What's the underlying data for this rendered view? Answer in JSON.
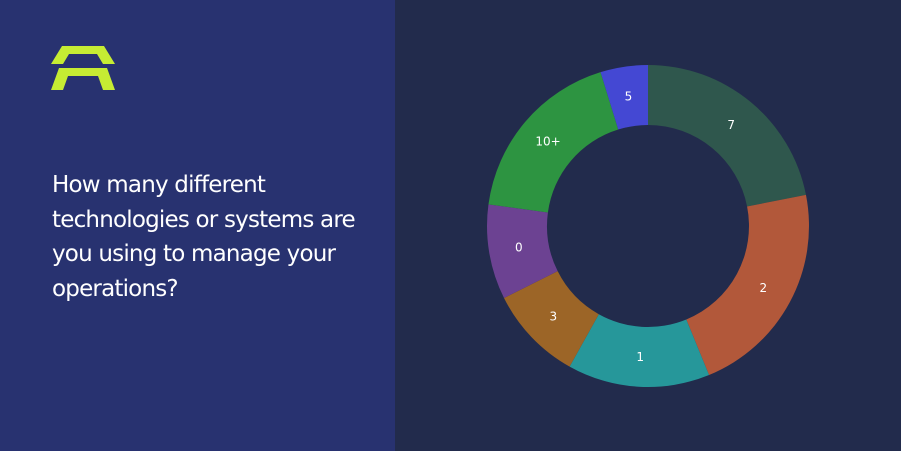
{
  "question": "How many different technologies or systems are you using to manage your operations?",
  "colors": {
    "left_bg": "#283270",
    "right_bg": "#222b4c",
    "accent": "#c6ec33"
  },
  "icons": {
    "brand": "brand-logo-icon"
  },
  "chart_data": {
    "type": "pie",
    "variant": "donut",
    "title": "",
    "slices": [
      {
        "label": "7",
        "value": 23,
        "color": "#2f574d"
      },
      {
        "label": "2",
        "value": 23,
        "color": "#b2583a"
      },
      {
        "label": "1",
        "value": 15,
        "color": "#26979a"
      },
      {
        "label": "3",
        "value": 10,
        "color": "#9c6527"
      },
      {
        "label": "0",
        "value": 10,
        "color": "#6c4292"
      },
      {
        "label": "10+",
        "value": 19,
        "color": "#2d9441"
      },
      {
        "label": "5",
        "value": 5,
        "color": "#4448d3"
      }
    ]
  }
}
